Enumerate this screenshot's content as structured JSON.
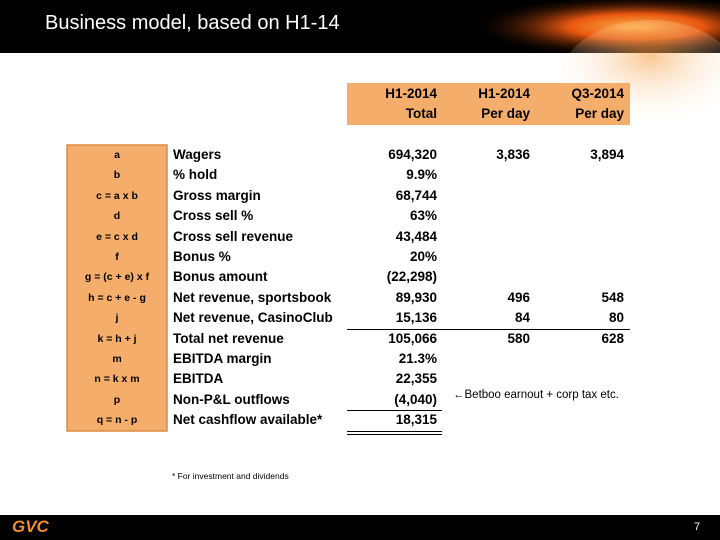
{
  "header": {
    "title": "Business model, based on H1-14"
  },
  "table": {
    "columns": [
      {
        "line1": "H1-2014",
        "line2": "Total"
      },
      {
        "line1": "H1-2014",
        "line2": "Per day"
      },
      {
        "line1": "Q3-2014",
        "line2": "Per day"
      }
    ],
    "rows": [
      {
        "formula": "a",
        "label": "Wagers",
        "total": "694,320",
        "per_day": "3,836",
        "q3": "3,894"
      },
      {
        "formula": "b",
        "label": "% hold",
        "total": "9.9%"
      },
      {
        "formula": "c = a x b",
        "label": "Gross margin",
        "total": "68,744"
      },
      {
        "formula": "d",
        "label": "Cross sell %",
        "total": "63%"
      },
      {
        "formula": "e = c x d",
        "label": "Cross sell revenue",
        "total": "43,484"
      },
      {
        "formula": "f",
        "label": "Bonus %",
        "total": "20%"
      },
      {
        "formula": "g = (c + e) x f",
        "label": "Bonus amount",
        "total": "(22,298)"
      },
      {
        "formula": "h = c + e - g",
        "label": "Net revenue, sportsbook",
        "total": "89,930",
        "per_day": "496",
        "q3": "548"
      },
      {
        "formula": "j",
        "label": "Net revenue, CasinoClub",
        "total": "15,136",
        "per_day": "84",
        "q3": "80"
      },
      {
        "formula": "k = h + j",
        "label": "Total net revenue",
        "total": "105,066",
        "per_day": "580",
        "q3": "628"
      },
      {
        "formula": "m",
        "label": "EBITDA margin",
        "total": "21.3%"
      },
      {
        "formula": "n = k x m",
        "label": "EBITDA",
        "total": "22,355"
      },
      {
        "formula": "p",
        "label": "Non-P&L outflows",
        "total": "(4,040)"
      },
      {
        "formula": "q = n - p",
        "label": "Net cashflow available*",
        "total": "18,315"
      }
    ]
  },
  "annotation": "←Betboo earnout + corp tax etc.",
  "footnote": "* For investment and dividends",
  "footer": {
    "logo": "GVC",
    "page": "7"
  }
}
